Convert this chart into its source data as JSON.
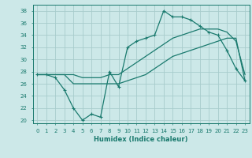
{
  "xlabel": "Humidex (Indice chaleur)",
  "background_color": "#cce8e8",
  "grid_color": "#a8cccc",
  "line_color": "#1a7a6e",
  "xlim": [
    -0.5,
    23.5
  ],
  "ylim": [
    19.5,
    39
  ],
  "xticks": [
    0,
    1,
    2,
    3,
    4,
    5,
    6,
    7,
    8,
    9,
    10,
    11,
    12,
    13,
    14,
    15,
    16,
    17,
    18,
    19,
    20,
    21,
    22,
    23
  ],
  "yticks": [
    20,
    22,
    24,
    26,
    28,
    30,
    32,
    34,
    36,
    38
  ],
  "series1_x": [
    0,
    1,
    2,
    3,
    4,
    5,
    6,
    7,
    8,
    9,
    10,
    11,
    12,
    13,
    14,
    15,
    16,
    17,
    18,
    19,
    20,
    21,
    22,
    23
  ],
  "series1_y": [
    27.5,
    27.5,
    27.0,
    25.0,
    22.0,
    20.0,
    21.0,
    20.5,
    28.0,
    25.5,
    32.0,
    33.0,
    33.5,
    34.0,
    38.0,
    37.0,
    37.0,
    36.5,
    35.5,
    34.5,
    34.0,
    31.5,
    28.5,
    26.5
  ],
  "series2_x": [
    0,
    2,
    3,
    4,
    5,
    6,
    7,
    8,
    9,
    10,
    11,
    12,
    13,
    14,
    15,
    16,
    17,
    18,
    19,
    20,
    21,
    22,
    23
  ],
  "series2_y": [
    27.5,
    27.5,
    27.5,
    27.5,
    27.0,
    27.0,
    27.0,
    27.5,
    27.5,
    28.5,
    29.5,
    30.5,
    31.5,
    32.5,
    33.5,
    34.0,
    34.5,
    35.0,
    35.0,
    35.0,
    34.5,
    33.0,
    27.5
  ],
  "series3_x": [
    0,
    1,
    2,
    3,
    4,
    5,
    6,
    7,
    8,
    9,
    10,
    11,
    12,
    13,
    14,
    15,
    16,
    17,
    18,
    19,
    20,
    21,
    22,
    23
  ],
  "series3_y": [
    27.5,
    27.5,
    27.5,
    27.5,
    26.0,
    26.0,
    26.0,
    26.0,
    26.0,
    26.0,
    26.5,
    27.0,
    27.5,
    28.5,
    29.5,
    30.5,
    31.0,
    31.5,
    32.0,
    32.5,
    33.0,
    33.5,
    33.5,
    26.5
  ]
}
